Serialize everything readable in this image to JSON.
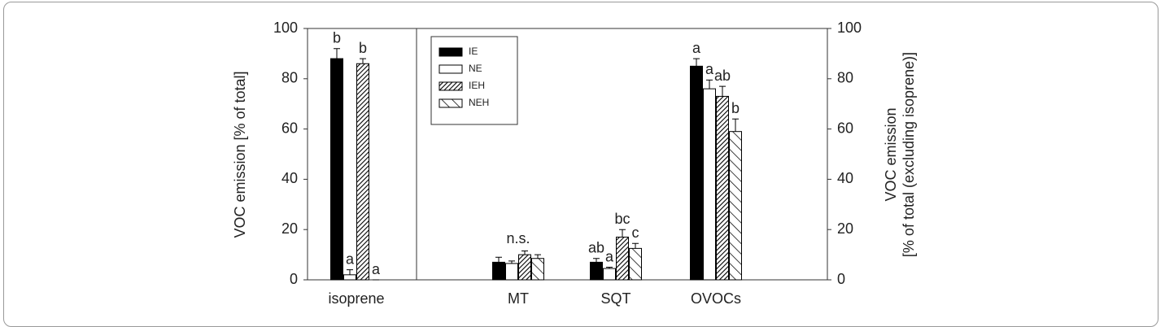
{
  "chart_data": {
    "type": "bar",
    "y_label": "VOC emission [% of total]",
    "y2_label": [
      "VOC emission",
      "[% of total (excluding isoprene)]"
    ],
    "categories": [
      "isoprene",
      "MT",
      "SQT",
      "OVOCs"
    ],
    "group_labels": [
      null,
      "n.s.",
      null,
      null
    ],
    "ylim": [
      0,
      100
    ],
    "yticks": [
      0,
      20,
      40,
      60,
      80,
      100
    ],
    "y2lim": [
      0,
      100
    ],
    "y2ticks": [
      0,
      20,
      40,
      60,
      80,
      100
    ],
    "series": [
      {
        "name": "IE",
        "color": "#000000",
        "pattern": "solid",
        "values": [
          88,
          7,
          7,
          85
        ],
        "errors": [
          4,
          2,
          1.5,
          3
        ],
        "letters": [
          "b",
          null,
          "ab",
          "a"
        ]
      },
      {
        "name": "NE",
        "color": "#ffffff",
        "pattern": "solid",
        "values": [
          2,
          6.5,
          4.5,
          76
        ],
        "errors": [
          2,
          1,
          0.5,
          3.5
        ],
        "letters": [
          "a",
          null,
          "a",
          "a"
        ]
      },
      {
        "name": "IEH",
        "color": "#ffffff",
        "pattern": "forward-hatch",
        "values": [
          86,
          10,
          17,
          73
        ],
        "errors": [
          2,
          1.5,
          3,
          4
        ],
        "letters": [
          "b",
          null,
          "bc",
          "ab"
        ]
      },
      {
        "name": "NEH",
        "color": "#ffffff",
        "pattern": "back-hatch",
        "values": [
          0,
          8.5,
          12.5,
          59
        ],
        "errors": [
          0,
          1.5,
          2,
          5
        ],
        "letters": [
          "a",
          null,
          "c",
          "b"
        ]
      }
    ]
  }
}
